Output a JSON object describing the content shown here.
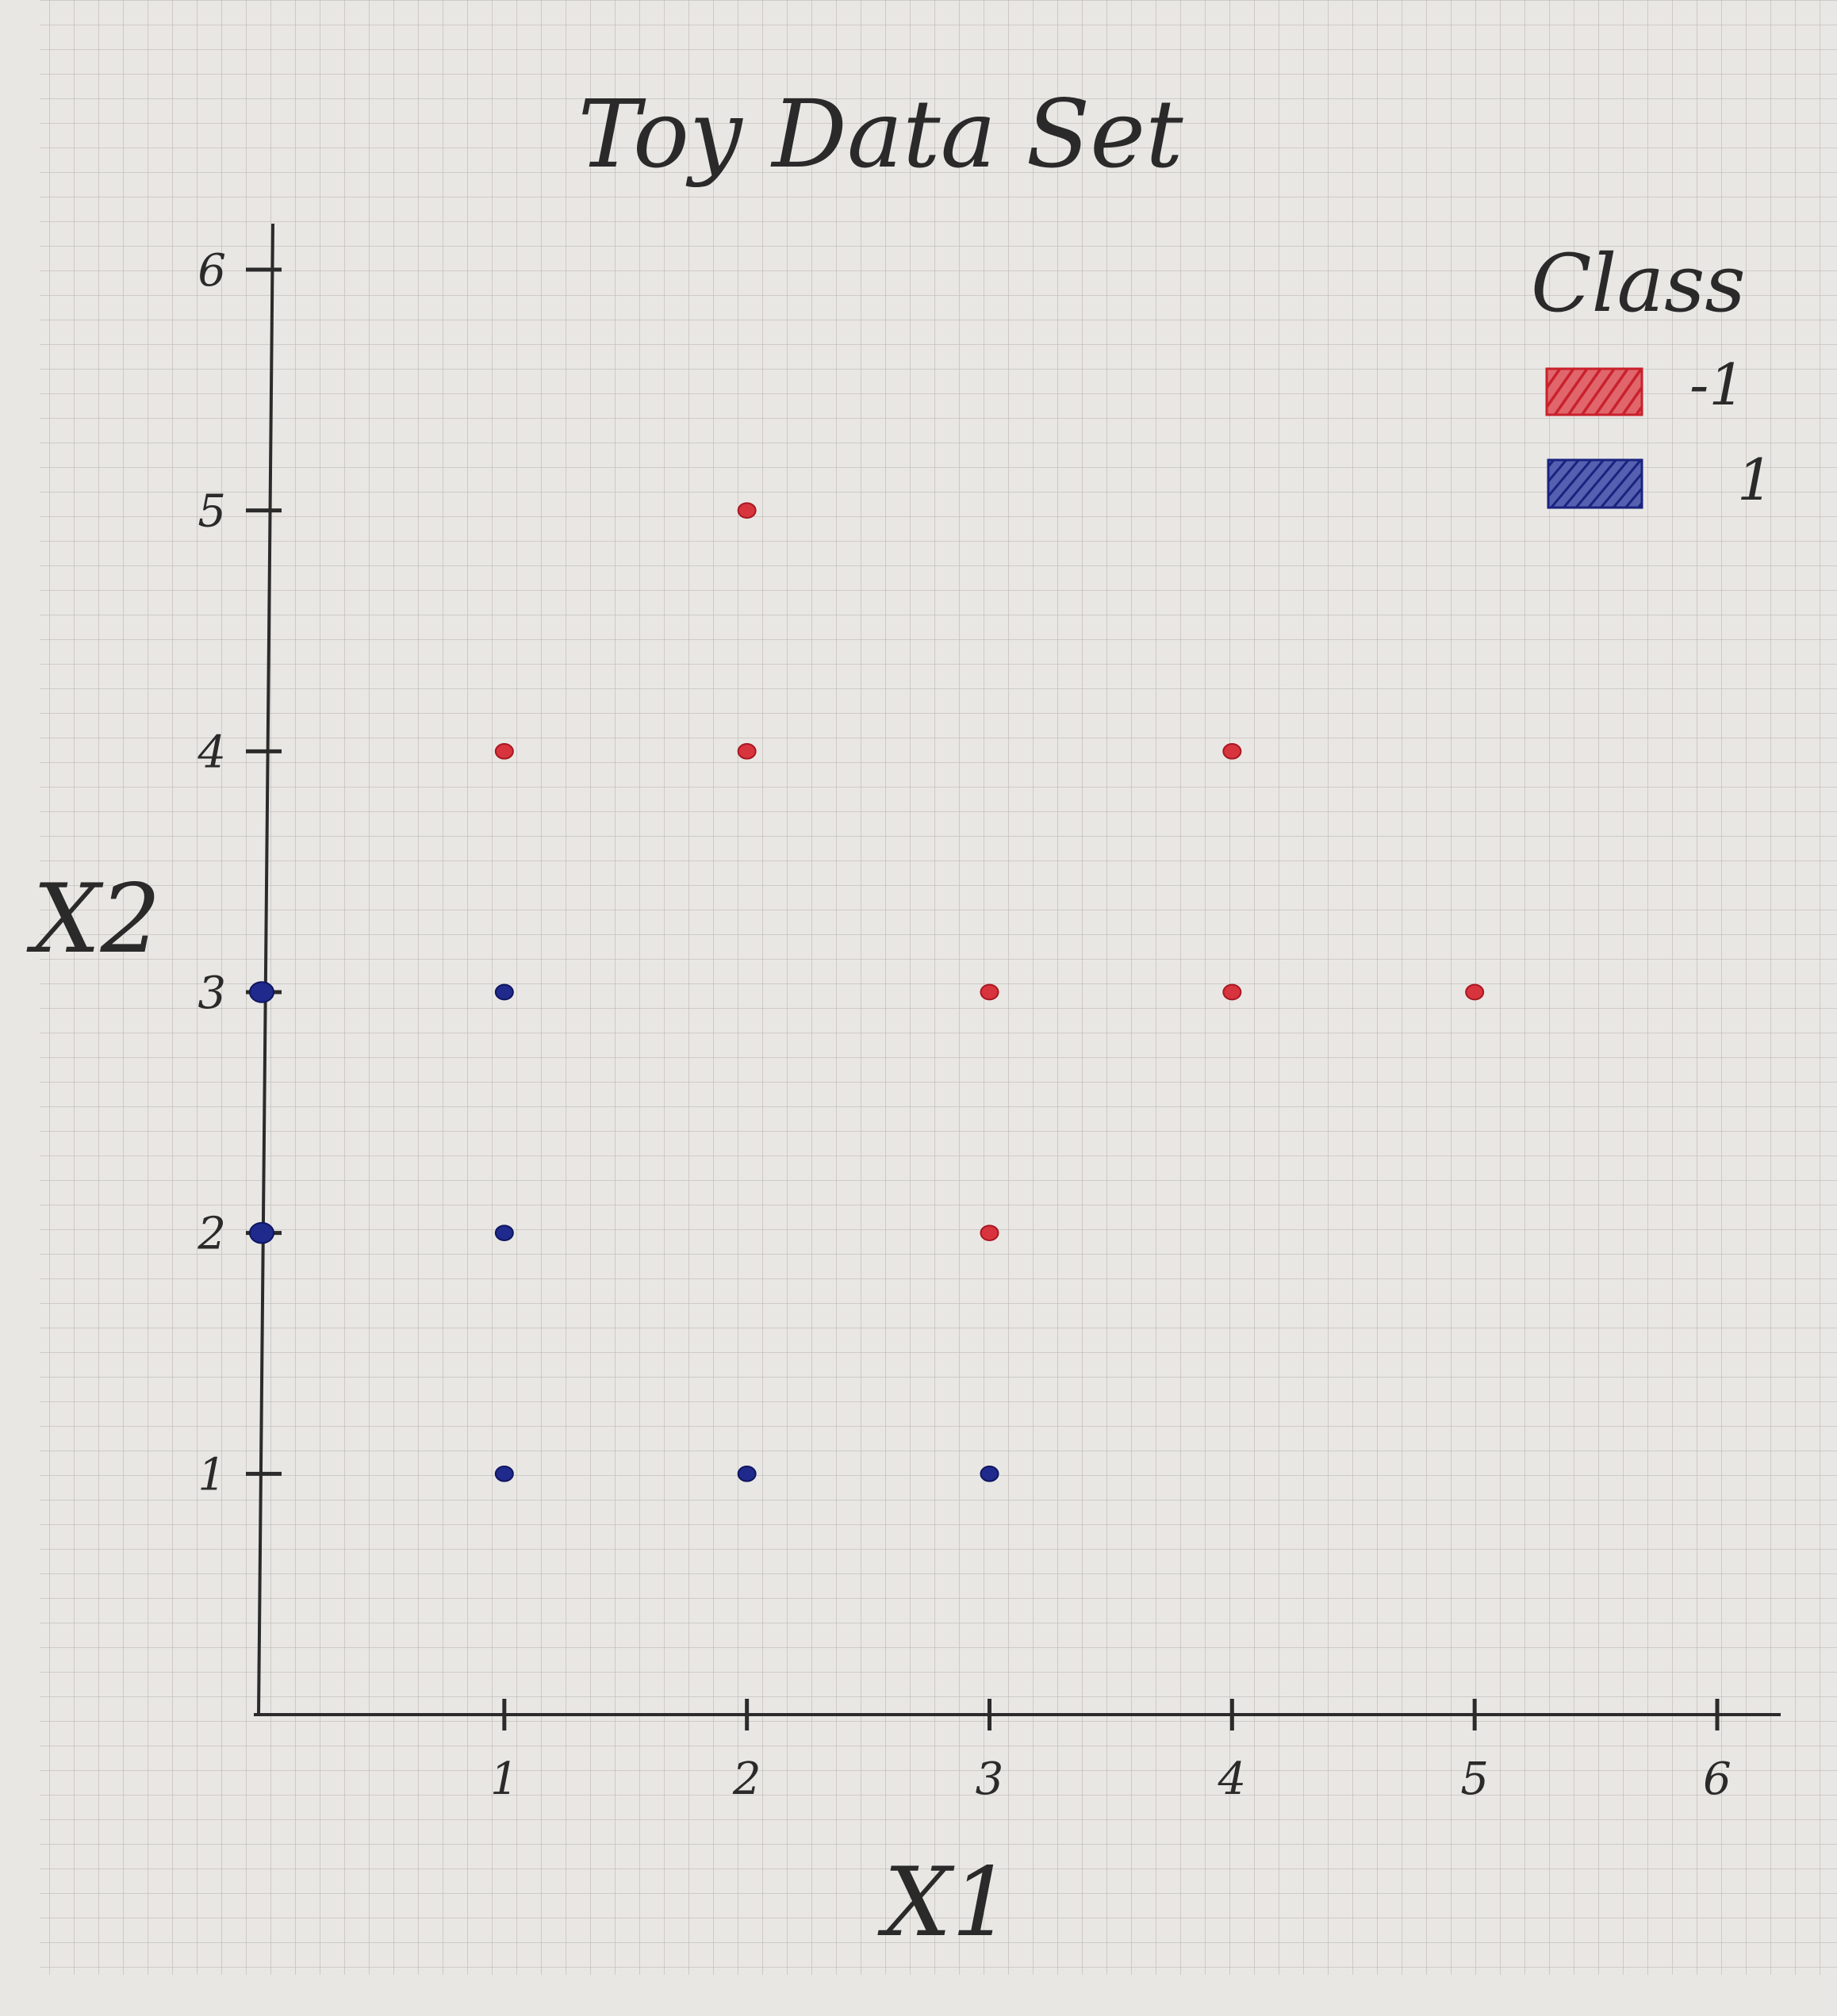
{
  "chart_data": {
    "type": "scatter",
    "title": "Toy Data Set",
    "xlabel": "X1",
    "ylabel": "X2",
    "xlim": [
      0,
      6
    ],
    "ylim": [
      0,
      6
    ],
    "x_ticks": [
      1,
      2,
      3,
      4,
      5,
      6
    ],
    "y_ticks": [
      1,
      2,
      3,
      4,
      5,
      6
    ],
    "grid": true,
    "legend": {
      "title": "Class",
      "placement": "top-right",
      "entries": [
        {
          "label": "-1",
          "color": "#d8343d"
        },
        {
          "label": "1",
          "color": "#1f2a8c"
        }
      ]
    },
    "series": [
      {
        "name": "-1",
        "color": "#d8343d",
        "points": [
          {
            "x": 2,
            "y": 5
          },
          {
            "x": 1,
            "y": 4
          },
          {
            "x": 2,
            "y": 4
          },
          {
            "x": 4,
            "y": 4
          },
          {
            "x": 3,
            "y": 3
          },
          {
            "x": 4,
            "y": 3
          },
          {
            "x": 5,
            "y": 3
          },
          {
            "x": 3,
            "y": 2
          }
        ]
      },
      {
        "name": "1",
        "color": "#1f2a8c",
        "points": [
          {
            "x": 0,
            "y": 3
          },
          {
            "x": 1,
            "y": 3
          },
          {
            "x": 0,
            "y": 2
          },
          {
            "x": 1,
            "y": 2
          },
          {
            "x": 1,
            "y": 1
          },
          {
            "x": 2,
            "y": 1
          },
          {
            "x": 3,
            "y": 1
          }
        ]
      }
    ]
  }
}
